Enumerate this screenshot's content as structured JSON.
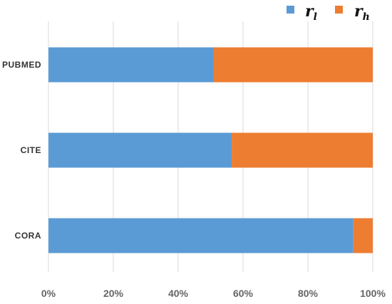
{
  "chart_data": {
    "type": "bar",
    "orientation": "horizontal",
    "stacked": "percent",
    "categories": [
      "PUBMED",
      "CITE",
      "CORA"
    ],
    "series": [
      {
        "name": "r_l",
        "color": "#5B9BD5",
        "values": [
          51,
          56.5,
          94
        ]
      },
      {
        "name": "r_h",
        "color": "#ED7D31",
        "values": [
          49,
          43.5,
          6
        ]
      }
    ],
    "xlim": [
      0,
      100
    ],
    "xticks": [
      "0%",
      "20%",
      "40%",
      "60%",
      "80%",
      "100%"
    ],
    "grid": "vertical",
    "legend_position": "top-right",
    "legend": [
      {
        "base": "r",
        "sub": "l"
      },
      {
        "base": "r",
        "sub": "h"
      }
    ],
    "colors": {
      "grid": "#D9D9D9"
    }
  }
}
